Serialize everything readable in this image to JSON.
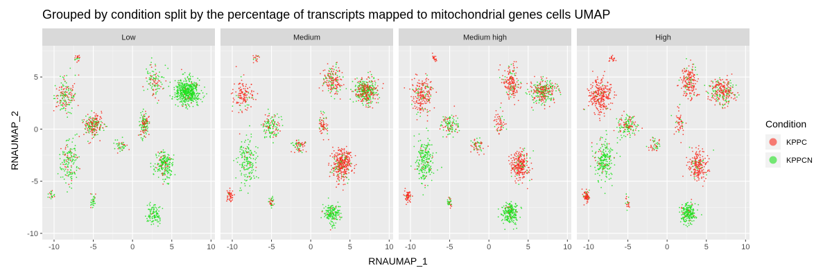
{
  "chart_data": {
    "type": "scatter",
    "title": "Grouped by condition split by the percentage of transcripts mapped to mitochondrial genes cells UMAP",
    "xlabel": "RNAUMAP_1",
    "ylabel": "RNAUMAP_2",
    "xlim": [
      -11.5,
      10.5
    ],
    "ylim": [
      -10.6,
      8.0
    ],
    "x_ticks": [
      -10,
      -5,
      0,
      5,
      10
    ],
    "y_ticks": [
      -10,
      -5,
      0,
      5
    ],
    "grid": true,
    "facets": [
      "Low",
      "Medium",
      "Medium high",
      "High"
    ],
    "legend": {
      "title": "Condition",
      "placement": "right",
      "entries": [
        {
          "label": "KPPC",
          "color": "#f8291c"
        },
        {
          "label": "KPPCN",
          "color": "#1ee01e"
        }
      ]
    },
    "colors": {
      "KPPC": "#f8291c",
      "KPPCN": "#1ee01e"
    },
    "clusters": [
      {
        "name": "top-right",
        "x": 7.0,
        "y": 3.6,
        "sx": 1.4,
        "sy": 1.1
      },
      {
        "name": "right-upper-band",
        "x": 2.8,
        "y": 4.6,
        "sx": 1.0,
        "sy": 1.4
      },
      {
        "name": "center-lower",
        "x": 4.0,
        "y": -3.4,
        "sx": 1.1,
        "sy": 1.3
      },
      {
        "name": "bottom",
        "x": 2.7,
        "y": -8.1,
        "sx": 0.9,
        "sy": 0.9
      },
      {
        "name": "left-upper",
        "x": -8.5,
        "y": 3.2,
        "sx": 1.2,
        "sy": 1.5
      },
      {
        "name": "left-center",
        "x": -5.0,
        "y": 0.3,
        "sx": 1.1,
        "sy": 1.0
      },
      {
        "name": "left-lower",
        "x": -8.1,
        "y": -3.1,
        "sx": 1.0,
        "sy": 1.9
      },
      {
        "name": "far-left-bottom",
        "x": -10.3,
        "y": -6.4,
        "sx": 0.4,
        "sy": 0.5
      },
      {
        "name": "mid-bridge",
        "x": -1.5,
        "y": -1.6,
        "sx": 0.8,
        "sy": 0.6
      },
      {
        "name": "small-bottom-left",
        "x": -5.0,
        "y": -7.0,
        "sx": 0.3,
        "sy": 0.5
      },
      {
        "name": "top-left-tip",
        "x": -7.0,
        "y": 6.8,
        "sx": 0.4,
        "sy": 0.3
      },
      {
        "name": "center-stem",
        "x": 1.5,
        "y": 0.5,
        "sx": 0.6,
        "sy": 1.1
      }
    ],
    "panels": [
      {
        "facet": "Low",
        "weights": [
          10,
          2,
          4,
          2,
          3,
          4,
          3,
          0.4,
          0.8,
          0.6,
          0.4,
          2.5
        ],
        "kppc_fraction": [
          0.05,
          0.35,
          0.2,
          0.03,
          0.5,
          0.55,
          0.15,
          0.5,
          0.3,
          0.3,
          0.7,
          0.5
        ]
      },
      {
        "facet": "Medium",
        "weights": [
          9,
          4,
          8,
          4,
          3,
          3,
          4,
          1,
          1.5,
          0.8,
          0.4,
          1.5
        ],
        "kppc_fraction": [
          0.5,
          0.7,
          0.85,
          0.05,
          0.85,
          0.3,
          0.1,
          0.95,
          0.6,
          0.6,
          0.8,
          0.6
        ]
      },
      {
        "facet": "Medium high",
        "weights": [
          8,
          5,
          7,
          6,
          6,
          3,
          6,
          1.5,
          1.5,
          0.8,
          0.5,
          1.5
        ],
        "kppc_fraction": [
          0.55,
          0.75,
          0.9,
          0.05,
          0.85,
          0.35,
          0.08,
          0.95,
          0.65,
          0.5,
          0.9,
          0.7
        ]
      },
      {
        "facet": "High",
        "weights": [
          7,
          5,
          6,
          6,
          8,
          4,
          6,
          2,
          1.2,
          0.6,
          0.5,
          1.5
        ],
        "kppc_fraction": [
          0.6,
          0.85,
          0.9,
          0.05,
          0.95,
          0.4,
          0.1,
          0.95,
          0.6,
          0.5,
          0.95,
          0.7
        ]
      }
    ]
  }
}
